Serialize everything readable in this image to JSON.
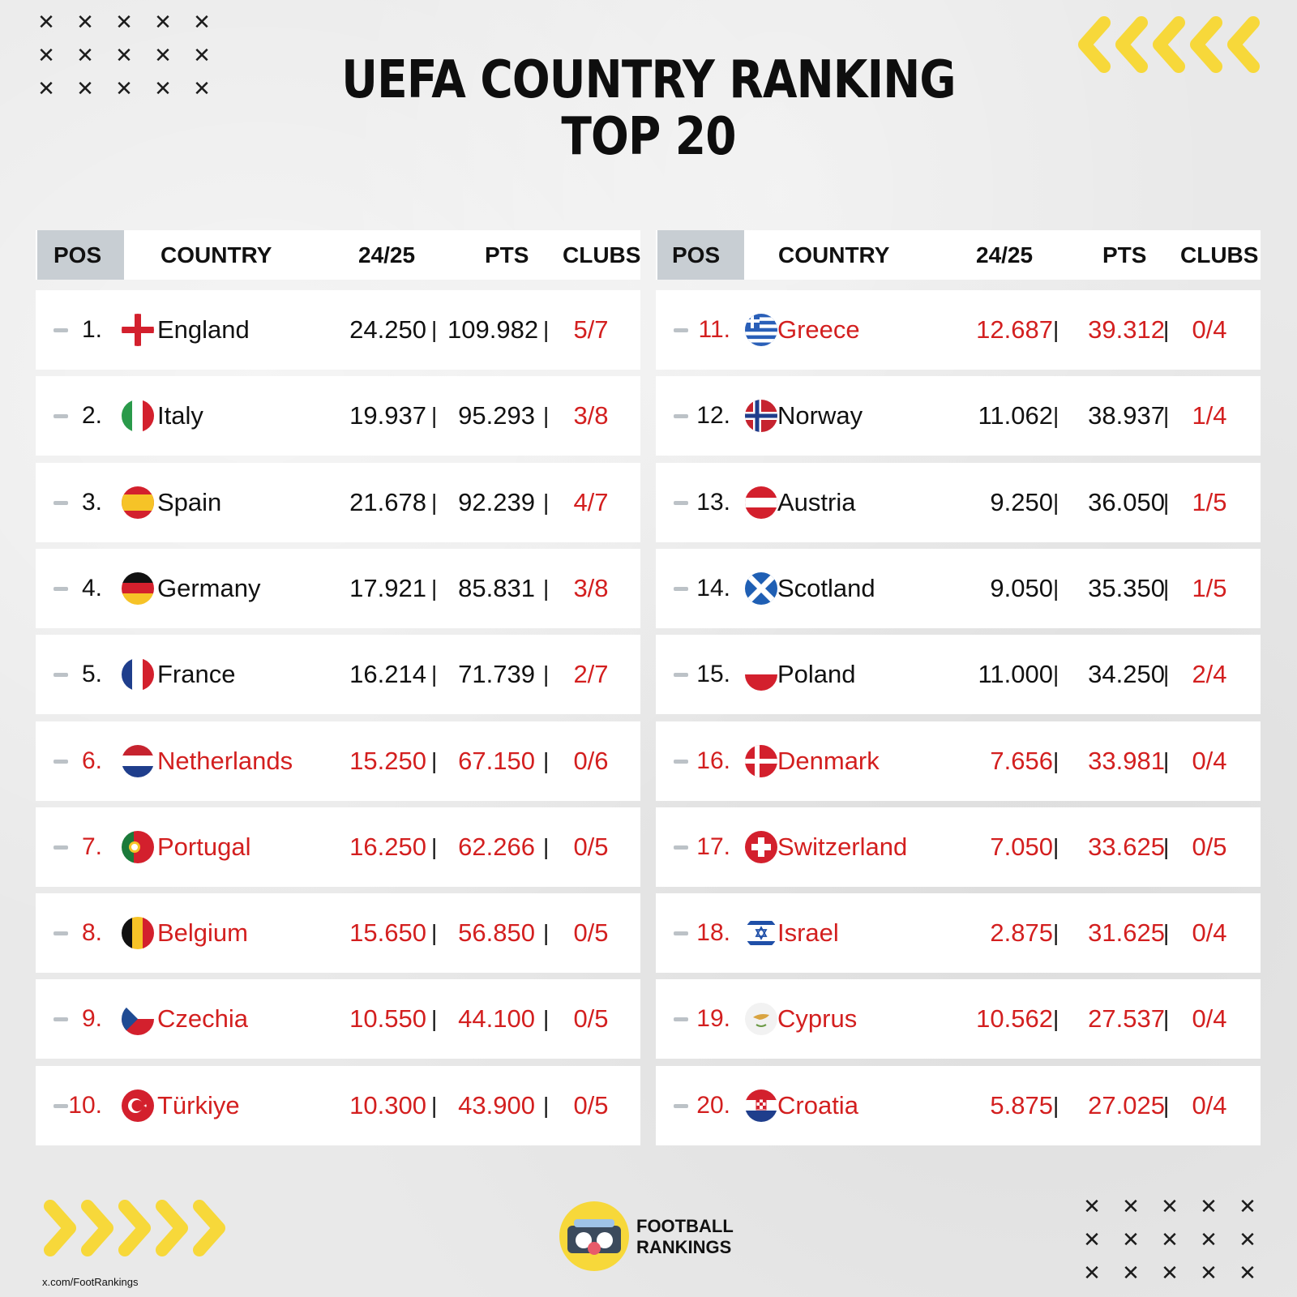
{
  "title": {
    "line1": "UEFA COUNTRY RANKING",
    "line2": "TOP 20"
  },
  "header": {
    "pos": "POS",
    "country": "COUNTRY",
    "season": "24/25",
    "pts": "PTS",
    "clubs": "CLUBS"
  },
  "colors": {
    "red": "#d31f1f",
    "dark": "#111111",
    "header_pos_bg": "#c8ced3",
    "accent_yellow": "#f7d83a"
  },
  "rankings": [
    {
      "pos": "1.",
      "country": "England",
      "season": "24.250",
      "pts": "109.982",
      "clubs": "5/7",
      "highlight": false,
      "flag": "england-flag-icon"
    },
    {
      "pos": "2.",
      "country": "Italy",
      "season": "19.937",
      "pts": "95.293",
      "clubs": "3/8",
      "highlight": false,
      "flag": "italy-flag-icon"
    },
    {
      "pos": "3.",
      "country": "Spain",
      "season": "21.678",
      "pts": "92.239",
      "clubs": "4/7",
      "highlight": false,
      "flag": "spain-flag-icon"
    },
    {
      "pos": "4.",
      "country": "Germany",
      "season": "17.921",
      "pts": "85.831",
      "clubs": "3/8",
      "highlight": false,
      "flag": "germany-flag-icon"
    },
    {
      "pos": "5.",
      "country": "France",
      "season": "16.214",
      "pts": "71.739",
      "clubs": "2/7",
      "highlight": false,
      "flag": "france-flag-icon"
    },
    {
      "pos": "6.",
      "country": "Netherlands",
      "season": "15.250",
      "pts": "67.150",
      "clubs": "0/6",
      "highlight": true,
      "flag": "netherlands-flag-icon"
    },
    {
      "pos": "7.",
      "country": "Portugal",
      "season": "16.250",
      "pts": "62.266",
      "clubs": "0/5",
      "highlight": true,
      "flag": "portugal-flag-icon"
    },
    {
      "pos": "8.",
      "country": "Belgium",
      "season": "15.650",
      "pts": "56.850",
      "clubs": "0/5",
      "highlight": true,
      "flag": "belgium-flag-icon"
    },
    {
      "pos": "9.",
      "country": "Czechia",
      "season": "10.550",
      "pts": "44.100",
      "clubs": "0/5",
      "highlight": true,
      "flag": "czechia-flag-icon"
    },
    {
      "pos": "10.",
      "country": "Türkiye",
      "season": "10.300",
      "pts": "43.900",
      "clubs": "0/5",
      "highlight": true,
      "flag": "turkiye-flag-icon"
    },
    {
      "pos": "11.",
      "country": "Greece",
      "season": "12.687",
      "pts": "39.312",
      "clubs": "0/4",
      "highlight": true,
      "flag": "greece-flag-icon"
    },
    {
      "pos": "12.",
      "country": "Norway",
      "season": "11.062",
      "pts": "38.937",
      "clubs": "1/4",
      "highlight": false,
      "flag": "norway-flag-icon"
    },
    {
      "pos": "13.",
      "country": "Austria",
      "season": "9.250",
      "pts": "36.050",
      "clubs": "1/5",
      "highlight": false,
      "flag": "austria-flag-icon"
    },
    {
      "pos": "14.",
      "country": "Scotland",
      "season": "9.050",
      "pts": "35.350",
      "clubs": "1/5",
      "highlight": false,
      "flag": "scotland-flag-icon"
    },
    {
      "pos": "15.",
      "country": "Poland",
      "season": "11.000",
      "pts": "34.250",
      "clubs": "2/4",
      "highlight": false,
      "flag": "poland-flag-icon"
    },
    {
      "pos": "16.",
      "country": "Denmark",
      "season": "7.656",
      "pts": "33.981",
      "clubs": "0/4",
      "highlight": true,
      "flag": "denmark-flag-icon"
    },
    {
      "pos": "17.",
      "country": "Switzerland",
      "season": "7.050",
      "pts": "33.625",
      "clubs": "0/5",
      "highlight": true,
      "flag": "switzerland-flag-icon"
    },
    {
      "pos": "18.",
      "country": "Israel",
      "season": "2.875",
      "pts": "31.625",
      "clubs": "0/4",
      "highlight": true,
      "flag": "israel-flag-icon"
    },
    {
      "pos": "19.",
      "country": "Cyprus",
      "season": "10.562",
      "pts": "27.537",
      "clubs": "0/4",
      "highlight": true,
      "flag": "cyprus-flag-icon"
    },
    {
      "pos": "20.",
      "country": "Croatia",
      "season": "5.875",
      "pts": "27.025",
      "clubs": "0/4",
      "highlight": true,
      "flag": "croatia-flag-icon"
    }
  ],
  "footer": {
    "brand_line1": "FOOTBALL",
    "brand_line2": "RANKINGS",
    "handle": "x.com/FootRankings",
    "logo_icon": "football-rankings-logo-icon"
  },
  "separator": "|"
}
